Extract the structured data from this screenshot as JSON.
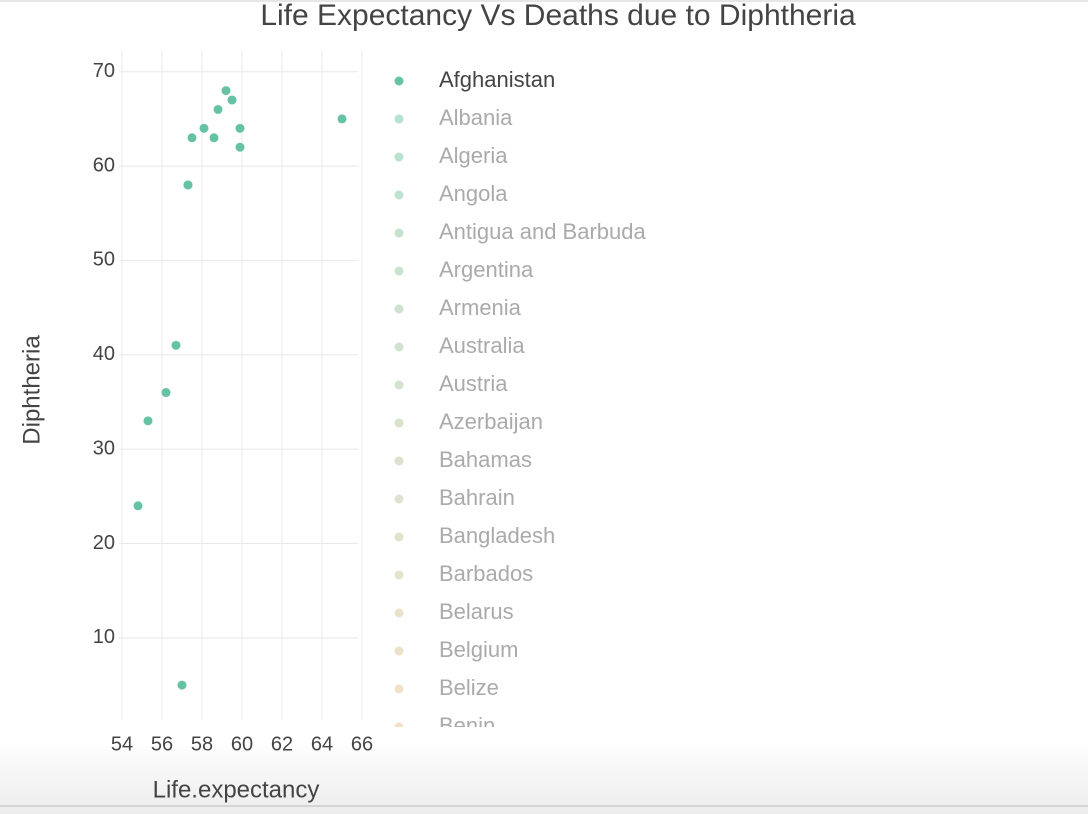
{
  "chart_data": {
    "type": "scatter",
    "title": "Life Expectancy Vs Deaths due to Diphtheria",
    "x_label": "Life.expectancy",
    "y_label": "Diphtheria",
    "xlim": [
      53.85,
      65.8
    ],
    "xticks": [
      54,
      56,
      58,
      60,
      62,
      64,
      66
    ],
    "ylim": [
      1.3,
      72.3
    ],
    "yticks": [
      10,
      20,
      30,
      40,
      50,
      60,
      70
    ],
    "grid": true,
    "series": [
      {
        "name": "Afghanistan",
        "color": "#66c2a5",
        "x": [
          65.0,
          59.9,
          59.9,
          59.5,
          59.2,
          58.8,
          58.6,
          58.1,
          57.5,
          57.3,
          57.3,
          57.0,
          56.7,
          56.2,
          55.3,
          54.8
        ],
        "values": [
          65,
          62,
          64,
          67,
          68,
          66,
          63,
          64,
          63,
          58,
          58,
          5,
          41,
          36,
          33,
          24
        ]
      }
    ],
    "legend_only": [
      {
        "name": "Albania",
        "color": "#6fc4a3"
      },
      {
        "name": "Algeria",
        "color": "#77c5a2"
      },
      {
        "name": "Angola",
        "color": "#7fc6a1"
      },
      {
        "name": "Antigua and Barbuda",
        "color": "#87c7a0"
      },
      {
        "name": "Argentina",
        "color": "#8fc79f"
      },
      {
        "name": "Armenia",
        "color": "#97c89e"
      },
      {
        "name": "Australia",
        "color": "#9fc89d"
      },
      {
        "name": "Austria",
        "color": "#a7c89c"
      },
      {
        "name": "Azerbaijan",
        "color": "#afc89b"
      },
      {
        "name": "Bahamas",
        "color": "#b7c79a"
      },
      {
        "name": "Bahrain",
        "color": "#bfc699"
      },
      {
        "name": "Bangladesh",
        "color": "#c7c598"
      },
      {
        "name": "Barbados",
        "color": "#cfc597"
      },
      {
        "name": "Belarus",
        "color": "#d6c496"
      },
      {
        "name": "Belgium",
        "color": "#dcc495"
      },
      {
        "name": "Belize",
        "color": "#e1c494"
      },
      {
        "name": "Benin",
        "color": "#e5c494"
      }
    ]
  }
}
